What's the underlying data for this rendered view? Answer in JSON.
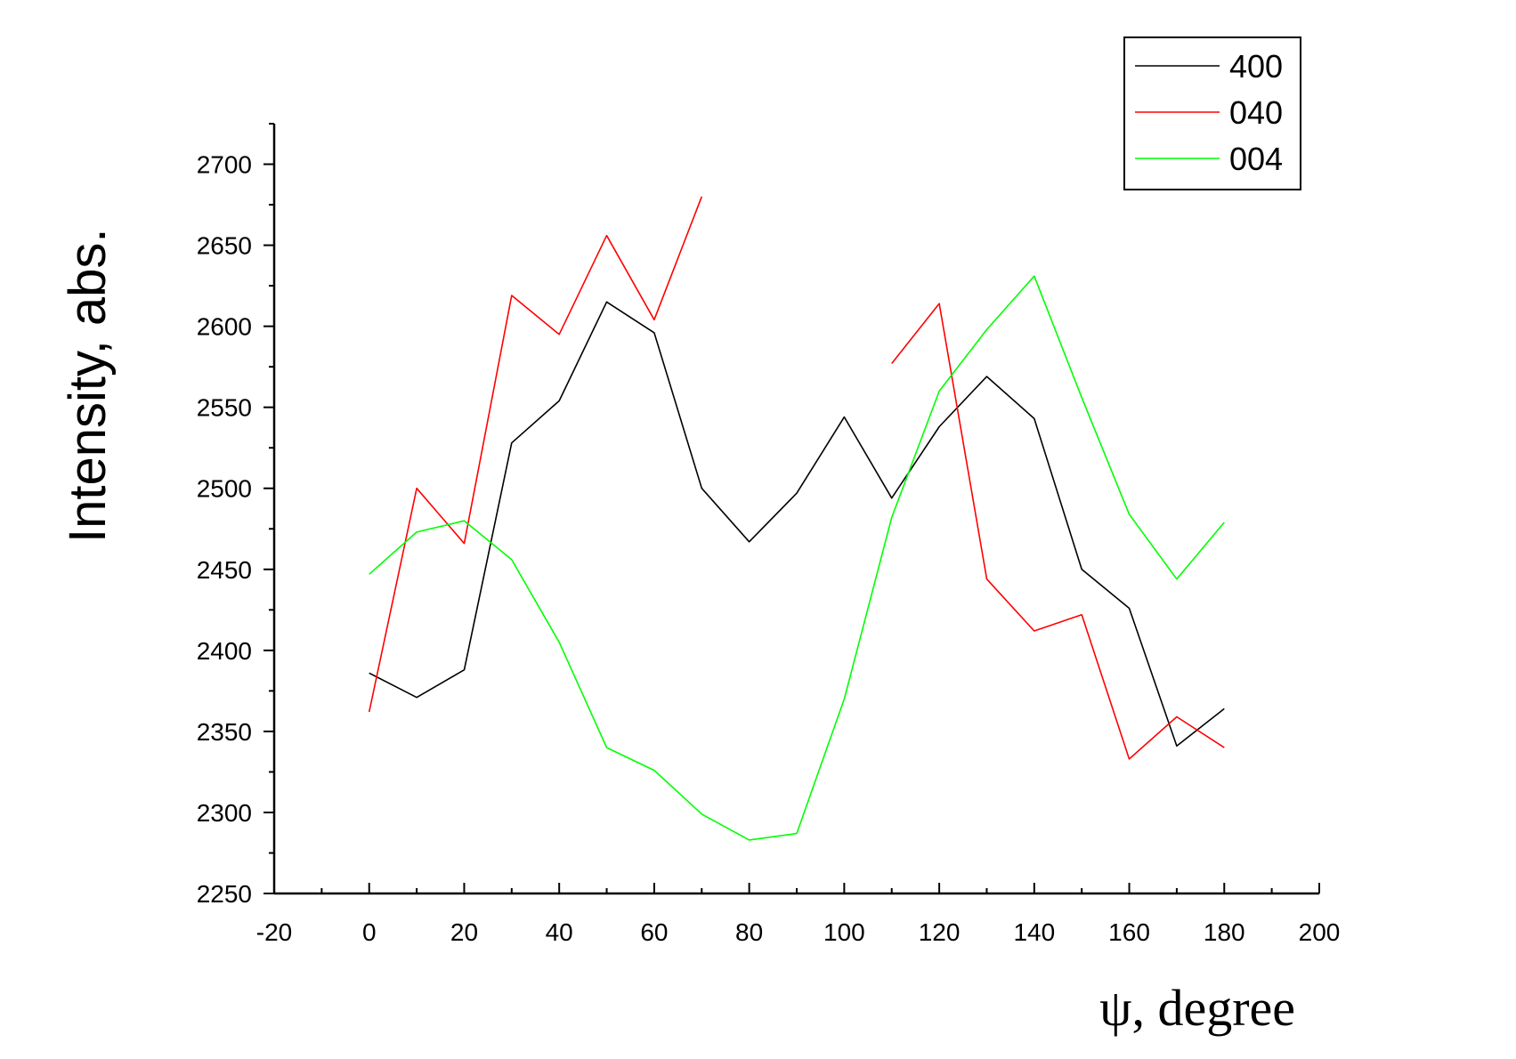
{
  "chart_data": {
    "type": "line",
    "xlabel": "ψ, degree",
    "ylabel": "Intensity, abs.",
    "xlim": [
      -20,
      200
    ],
    "ylim": [
      2250,
      2725
    ],
    "xticks": [
      -20,
      0,
      20,
      40,
      60,
      80,
      100,
      120,
      140,
      160,
      180,
      200
    ],
    "yticks": [
      2250,
      2300,
      2350,
      2400,
      2450,
      2500,
      2550,
      2600,
      2650,
      2700
    ],
    "grid": false,
    "legend_position": "top-right",
    "series": [
      {
        "name": "400",
        "color": "#000000",
        "x": [
          0,
          10,
          20,
          30,
          40,
          50,
          60,
          70,
          80,
          90,
          100,
          110,
          120,
          130,
          140,
          150,
          160,
          170,
          180
        ],
        "y": [
          2386,
          2371,
          2388,
          2528,
          2554,
          2615,
          2596,
          2500,
          2467,
          2497,
          2544,
          2494,
          2538,
          2569,
          2543,
          2450,
          2426,
          2341,
          2364
        ]
      },
      {
        "name": "040",
        "color": "#ff0000",
        "x": [
          0,
          10,
          20,
          30,
          40,
          50,
          60,
          70,
          null,
          110,
          120,
          130,
          140,
          150,
          160,
          170,
          180
        ],
        "y": [
          2362,
          2500,
          2466,
          2619,
          2595,
          2656,
          2604,
          2680,
          null,
          2577,
          2614,
          2444,
          2412,
          2422,
          2333,
          2359,
          2340
        ]
      },
      {
        "name": "004",
        "color": "#00ff00",
        "x": [
          0,
          10,
          20,
          30,
          40,
          50,
          60,
          70,
          80,
          90,
          100,
          110,
          120,
          130,
          140,
          150,
          160,
          170,
          180
        ],
        "y": [
          2447,
          2473,
          2480,
          2456,
          2405,
          2340,
          2326,
          2299,
          2283,
          2287,
          2370,
          2482,
          2560,
          2598,
          2631,
          2556,
          2484,
          2444,
          2479
        ]
      }
    ]
  }
}
